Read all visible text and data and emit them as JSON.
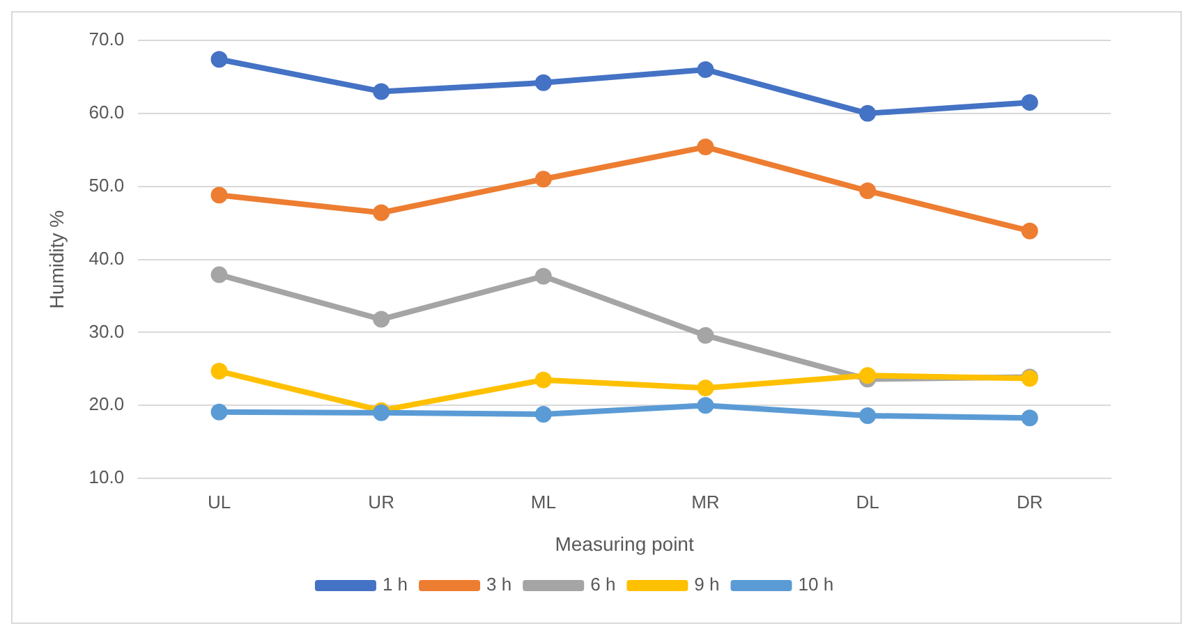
{
  "chart_data": {
    "type": "line",
    "xlabel": "Measuring point",
    "ylabel": "Humidity %",
    "categories": [
      "UL",
      "UR",
      "ML",
      "MR",
      "DL",
      "DR"
    ],
    "series": [
      {
        "name": "1 h",
        "color": "#4472c4",
        "values": [
          67.4,
          63.0,
          64.2,
          66.0,
          60.0,
          61.5
        ]
      },
      {
        "name": "3 h",
        "color": "#ed7d31",
        "values": [
          48.8,
          46.4,
          51.0,
          55.4,
          49.4,
          43.9
        ]
      },
      {
        "name": "6 h",
        "color": "#a5a5a5",
        "values": [
          37.9,
          31.8,
          37.7,
          29.6,
          23.6,
          23.9
        ]
      },
      {
        "name": "9 h",
        "color": "#ffc000",
        "values": [
          24.7,
          19.3,
          23.5,
          22.4,
          24.1,
          23.7
        ]
      },
      {
        "name": "10 h",
        "color": "#5b9bd5",
        "values": [
          19.1,
          19.0,
          18.8,
          20.0,
          18.6,
          18.3
        ]
      }
    ],
    "ylim": [
      10,
      70
    ],
    "yticks": [
      {
        "value": 10,
        "label": "10.0"
      },
      {
        "value": 20,
        "label": "20.0"
      },
      {
        "value": 30,
        "label": "30.0"
      },
      {
        "value": 40,
        "label": "40.0"
      },
      {
        "value": 50,
        "label": "50.0"
      },
      {
        "value": 60,
        "label": "60.0"
      },
      {
        "value": 70,
        "label": "70.0"
      }
    ],
    "grid": "y",
    "legend": "bottom",
    "marker": "circle",
    "line_style": "solid"
  }
}
